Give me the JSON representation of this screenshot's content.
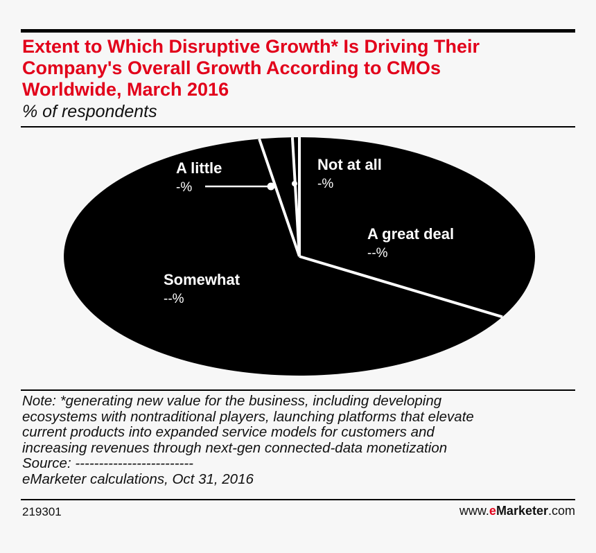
{
  "colors": {
    "title": "#e2001a",
    "pie_fill": "#000000",
    "separator": "#ffffff",
    "brand_accent": "#e2001a"
  },
  "header": {
    "title": "Extent to Which Disruptive Growth* Is Driving Their\nCompany's Overall Growth According to CMOs\nWorldwide, March 2016",
    "subtitle": "% of respondents"
  },
  "chart_data": {
    "type": "pie",
    "slices": [
      {
        "label": "A great deal",
        "value_text": "--%"
      },
      {
        "label": "Somewhat",
        "value_text": "--%"
      },
      {
        "label": "A little",
        "value_text": "-%"
      },
      {
        "label": "Not at all",
        "value_text": "-%"
      }
    ],
    "legend": "labels on slices"
  },
  "notes": {
    "lines": [
      "Note: *generating new value for the business, including developing",
      "ecosystems with nontraditional players, launching platforms that elevate",
      "current products into expanded service models for customers and",
      "increasing revenues through next-gen connected-data monetization",
      "Source: -------------------------",
      "eMarketer calculations, Oct 31, 2016"
    ]
  },
  "footer": {
    "chart_id": "219301",
    "brand_prefix": "www.",
    "brand_accent": "e",
    "brand_name": "Marketer",
    "brand_suffix": ".com"
  }
}
